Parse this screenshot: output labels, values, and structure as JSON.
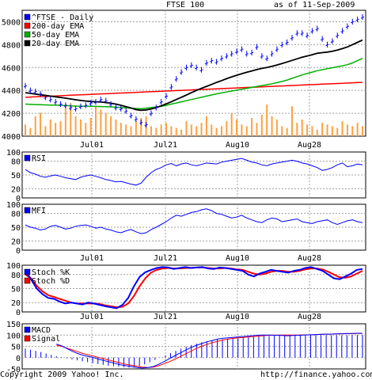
{
  "header": {
    "title": "FTSE 100",
    "date": "as of 11-Sep-2009"
  },
  "footer": {
    "copyright": "Copyright 2009 Yahoo! Inc.",
    "url": "http://finance.yahoo.com/"
  },
  "colors": {
    "price": "#0000ff",
    "ema200": "#ff0000",
    "ema50": "#00b000",
    "ema20": "#000000",
    "volume": "#ffa040",
    "rsi": "#0000ff",
    "mfi": "#0000ff",
    "stochK": "#0000ff",
    "stochD": "#ff0000",
    "macdHist": "#0000ff",
    "macd": "#0000ff",
    "signal": "#ff0000",
    "grid": "#a0a0a0"
  },
  "chart_data": [
    {
      "type": "line",
      "panel": "price",
      "x_tick_labels": [
        "Jul01",
        "Jul21",
        "Aug10",
        "Aug28"
      ],
      "ylim": [
        4000,
        5100
      ],
      "y_tick_labels": [
        "4000",
        "4200",
        "4400",
        "4600",
        "4800",
        "5000"
      ],
      "legend": [
        "^FTSE - Daily",
        "200-day EMA",
        "50-day EMA",
        "20-day EMA"
      ],
      "legend_position": "top-left",
      "close": [
        4440,
        4400,
        4390,
        4370,
        4340,
        4320,
        4300,
        4280,
        4270,
        4250,
        4240,
        4260,
        4270,
        4290,
        4300,
        4320,
        4310,
        4280,
        4250,
        4240,
        4220,
        4180,
        4150,
        4120,
        4100,
        4200,
        4250,
        4300,
        4350,
        4430,
        4500,
        4560,
        4600,
        4620,
        4600,
        4580,
        4640,
        4660,
        4650,
        4680,
        4700,
        4720,
        4740,
        4760,
        4720,
        4730,
        4780,
        4700,
        4680,
        4720,
        4760,
        4800,
        4820,
        4860,
        4900,
        4900,
        4880,
        4920,
        4940,
        4850,
        4800,
        4830,
        4880,
        4920,
        4960,
        5000,
        5020,
        5040
      ],
      "ema200_start": 4340,
      "ema200_end": 4470,
      "ema50": [
        4280,
        4278,
        4276,
        4275,
        4273,
        4272,
        4271,
        4270,
        4268,
        4265,
        4263,
        4262,
        4262,
        4261,
        4260,
        4259,
        4258,
        4256,
        4253,
        4250,
        4248,
        4245,
        4242,
        4240,
        4245,
        4250,
        4255,
        4260,
        4270,
        4280,
        4290,
        4300,
        4310,
        4320,
        4330,
        4340,
        4350,
        4360,
        4370,
        4378,
        4386,
        4394,
        4402,
        4410,
        4418,
        4426,
        4434,
        4442,
        4450,
        4458,
        4468,
        4478,
        4490,
        4505,
        4520,
        4535,
        4548,
        4560,
        4572,
        4580,
        4590,
        4598,
        4606,
        4614,
        4625,
        4640,
        4660,
        4680
      ],
      "ema20": [
        4380,
        4374,
        4368,
        4362,
        4356,
        4350,
        4344,
        4338,
        4332,
        4325,
        4318,
        4312,
        4307,
        4303,
        4300,
        4298,
        4294,
        4288,
        4280,
        4270,
        4258,
        4246,
        4232,
        4226,
        4230,
        4238,
        4250,
        4265,
        4282,
        4300,
        4320,
        4340,
        4360,
        4380,
        4400,
        4418,
        4435,
        4452,
        4470,
        4486,
        4502,
        4518,
        4532,
        4546,
        4558,
        4570,
        4582,
        4592,
        4600,
        4610,
        4622,
        4635,
        4648,
        4662,
        4676,
        4690,
        4700,
        4712,
        4724,
        4730,
        4735,
        4742,
        4752,
        4765,
        4780,
        4800,
        4820,
        4840
      ],
      "volume": [
        35,
        25,
        60,
        70,
        30,
        50,
        40,
        45,
        90,
        100,
        60,
        50,
        40,
        55,
        90,
        80,
        70,
        60,
        50,
        40,
        35,
        30,
        45,
        55,
        60,
        30,
        25,
        35,
        40,
        30,
        25,
        20,
        45,
        35,
        30,
        40,
        60,
        35,
        25,
        30,
        45,
        70,
        50,
        35,
        30,
        55,
        40,
        65,
        95,
        60,
        50,
        30,
        25,
        90,
        40,
        50,
        35,
        30,
        20,
        40,
        35,
        30,
        25,
        45,
        35,
        30,
        40,
        30
      ]
    },
    {
      "type": "line",
      "panel": "indicator",
      "legend": [
        "RSI"
      ],
      "ylim": [
        0,
        100
      ],
      "y_tick_labels": [
        "0",
        "20",
        "50",
        "80",
        "100"
      ],
      "values": [
        62,
        55,
        52,
        47,
        45,
        48,
        50,
        47,
        44,
        42,
        40,
        45,
        48,
        50,
        47,
        44,
        40,
        38,
        35,
        36,
        33,
        30,
        28,
        32,
        45,
        55,
        62,
        66,
        72,
        75,
        70,
        74,
        76,
        72,
        70,
        73,
        76,
        75,
        74,
        78,
        80,
        82,
        84,
        86,
        82,
        78,
        76,
        72,
        70,
        74,
        76,
        78,
        80,
        82,
        80,
        76,
        74,
        70,
        66,
        60,
        62,
        66,
        72,
        76,
        68,
        70,
        74,
        72
      ]
    },
    {
      "type": "line",
      "panel": "indicator",
      "legend": [
        "MFI"
      ],
      "ylim": [
        0,
        100
      ],
      "y_tick_labels": [
        "0",
        "20",
        "50",
        "80",
        "100"
      ],
      "values": [
        55,
        50,
        48,
        44,
        46,
        52,
        54,
        50,
        46,
        48,
        52,
        54,
        55,
        52,
        48,
        50,
        46,
        44,
        40,
        38,
        42,
        45,
        40,
        36,
        38,
        45,
        50,
        56,
        62,
        70,
        76,
        74,
        78,
        82,
        84,
        88,
        90,
        86,
        80,
        78,
        74,
        70,
        72,
        76,
        70,
        66,
        62,
        60,
        66,
        70,
        68,
        62,
        64,
        66,
        68,
        62,
        60,
        58,
        62,
        64,
        66,
        60,
        56,
        60,
        64,
        66,
        62,
        60
      ]
    },
    {
      "type": "line",
      "panel": "indicator",
      "legend": [
        "Stoch %K",
        "Stoch %D"
      ],
      "ylim": [
        0,
        100
      ],
      "y_tick_labels": [
        "0",
        "20",
        "50",
        "80",
        "100"
      ],
      "k": [
        88,
        70,
        50,
        38,
        30,
        28,
        22,
        18,
        20,
        18,
        16,
        20,
        18,
        15,
        12,
        10,
        8,
        15,
        30,
        55,
        75,
        85,
        90,
        94,
        96,
        95,
        92,
        94,
        96,
        94,
        95,
        96,
        93,
        92,
        95,
        94,
        92,
        90,
        88,
        80,
        76,
        82,
        86,
        90,
        88,
        86,
        84,
        88,
        90,
        94,
        96,
        92,
        88,
        80,
        72,
        70,
        76,
        82,
        90,
        92
      ],
      "d": [
        80,
        72,
        56,
        44,
        36,
        32,
        28,
        24,
        20,
        18,
        18,
        18,
        18,
        17,
        14,
        12,
        10,
        11,
        18,
        34,
        55,
        72,
        84,
        90,
        93,
        94,
        93,
        93,
        94,
        94,
        95,
        95,
        94,
        93,
        93,
        94,
        93,
        91,
        90,
        86,
        82,
        80,
        82,
        86,
        88,
        88,
        86,
        86,
        88,
        91,
        93,
        93,
        91,
        86,
        80,
        74,
        73,
        76,
        82,
        88
      ]
    },
    {
      "type": "bar",
      "panel": "indicator",
      "legend": [
        "MACD",
        "Signal"
      ],
      "ylim": [
        -50,
        150
      ],
      "y_tick_labels": [
        "-50",
        "0",
        "50",
        "100",
        "150"
      ],
      "histogram": [
        40,
        35,
        30,
        25,
        18,
        12,
        6,
        2,
        -3,
        -8,
        -12,
        -16,
        -20,
        -24,
        -28,
        -32,
        -36,
        -38,
        -40,
        -42,
        -44,
        -42,
        -38,
        -30,
        -20,
        -10,
        0,
        10,
        20,
        30,
        40,
        48,
        56,
        62,
        68,
        72,
        76,
        80,
        82,
        84,
        86,
        88,
        90,
        92,
        94,
        95,
        96,
        96,
        97,
        97,
        98,
        98,
        98,
        99,
        99,
        99,
        99,
        99,
        99,
        99,
        99,
        99,
        99,
        100,
        100,
        100
      ],
      "macd": [
        60,
        52,
        40,
        28,
        18,
        10,
        5,
        0,
        -8,
        -14,
        -20,
        -26,
        -32,
        -36,
        -40,
        -44,
        -46,
        -44,
        -40,
        -30,
        -18,
        -5,
        8,
        20,
        32,
        44,
        54,
        62,
        70,
        76,
        82,
        86,
        88,
        90,
        92,
        94,
        96,
        98,
        100,
        100,
        100,
        99,
        98,
        97,
        98,
        99,
        100,
        101,
        102,
        103,
        104,
        104,
        105,
        106,
        107,
        107,
        108,
        108
      ],
      "signal": [
        55,
        50,
        42,
        34,
        26,
        18,
        12,
        6,
        0,
        -6,
        -12,
        -18,
        -24,
        -30,
        -34,
        -38,
        -42,
        -44,
        -42,
        -36,
        -28,
        -18,
        -8,
        4,
        16,
        28,
        40,
        50,
        58,
        66,
        72,
        78,
        82,
        86,
        88,
        90,
        92,
        94,
        96,
        98,
        99,
        100,
        100,
        100,
        100,
        100,
        101,
        101,
        102,
        103,
        104,
        104,
        105,
        105,
        106,
        106,
        107,
        107
      ]
    }
  ]
}
